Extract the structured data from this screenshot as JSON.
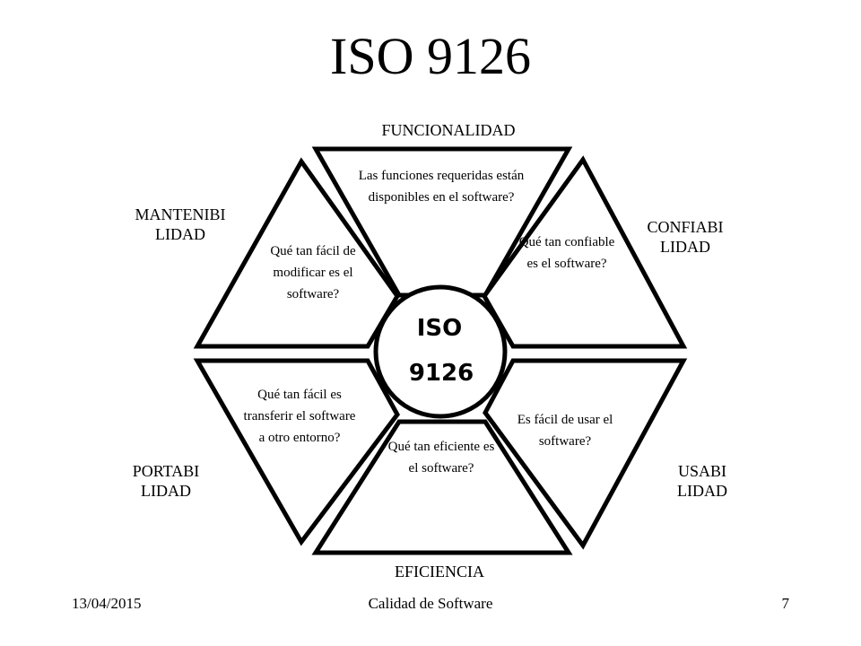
{
  "title": "ISO 9126",
  "center": {
    "line1": "ISO",
    "line2": "9126"
  },
  "characteristics": {
    "funcionalidad": {
      "label": "FUNCIONALIDAD",
      "question": "Las funciones requeridas están disponibles en el software?"
    },
    "confiabilidad": {
      "label_1": "CONFIABI",
      "label_2": "LIDAD",
      "question": "Qué tan confiable es el software?"
    },
    "usabilidad": {
      "label_1": "USABI",
      "label_2": "LIDAD",
      "question": "Es fácil de usar el software?"
    },
    "eficiencia": {
      "label": "EFICIENCIA",
      "question": "Qué tan eficiente es el software?"
    },
    "portabilidad": {
      "label_1": "PORTABI",
      "label_2": "LIDAD",
      "question": "Qué tan fácil es transferir el software a otro entorno?"
    },
    "mantenibilidad": {
      "label_1": "MANTENIBI",
      "label_2": "LIDAD",
      "question": "Qué tan fácil de modificar es el software?"
    }
  },
  "footer": {
    "date": "13/04/2015",
    "course": "Calidad de Software",
    "page": "7"
  }
}
